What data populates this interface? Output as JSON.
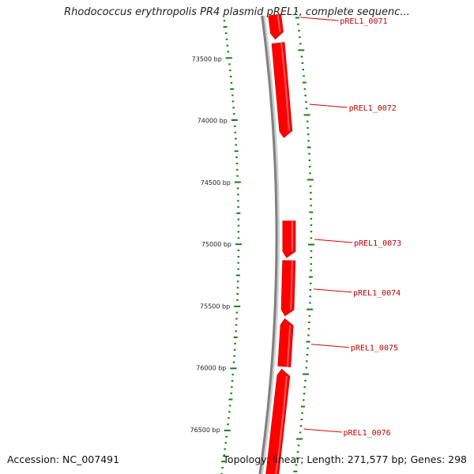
{
  "title": "Rhodococcus erythropolis PR4 plasmid pREL1, complete sequenc...",
  "footer": {
    "accession": "Accession: NC_007491",
    "summary": "Topology: linear; Length: 271,577 bp; Genes: 298"
  },
  "view": {
    "bp_start": 73200,
    "bp_end": 76870
  },
  "colors": {
    "gene": "#ff0000",
    "gene_label": "#c00000",
    "backbone": "#808080",
    "ticks": "#1a7a1a"
  },
  "bp_ticks": [
    {
      "bp": 73500,
      "label": "73500 bp"
    },
    {
      "bp": 74000,
      "label": "74000 bp"
    },
    {
      "bp": 74500,
      "label": "74500 bp"
    },
    {
      "bp": 75000,
      "label": "75000 bp"
    },
    {
      "bp": 75500,
      "label": "75500 bp"
    },
    {
      "bp": 76000,
      "label": "76000 bp"
    },
    {
      "bp": 76500,
      "label": "76500 bp"
    }
  ],
  "genes": [
    {
      "name": "pREL1_0071",
      "start": 73200,
      "end": 73400,
      "strand": "-"
    },
    {
      "name": "pREL1_0072",
      "start": 73420,
      "end": 74170,
      "strand": "-"
    },
    {
      "name": "pREL1_0073",
      "start": 74810,
      "end": 75110,
      "strand": "-"
    },
    {
      "name": "pREL1_0074",
      "start": 75120,
      "end": 75565,
      "strand": "-"
    },
    {
      "name": "pREL1_0075",
      "start": 75575,
      "end": 75960,
      "strand": "+"
    },
    {
      "name": "pREL1_0076",
      "start": 75970,
      "end": 76870,
      "strand": "+"
    }
  ]
}
